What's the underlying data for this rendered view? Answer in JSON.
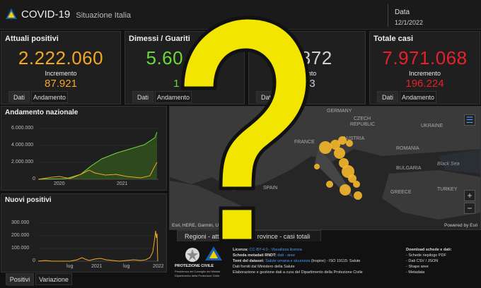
{
  "header": {
    "title": "COVID-19",
    "subtitle": "Situazione Italia",
    "date_label": "Data",
    "date_value": "12/1/2022"
  },
  "kpis": [
    {
      "title": "Attuali positivi",
      "value": "2.222.060",
      "inc_label": "Incremento",
      "inc_value": "87.921",
      "color": "#f5a623"
    },
    {
      "title": "Dimessi / Guariti",
      "value": "5.60…36",
      "inc_label": "",
      "inc_value": "1…8",
      "color": "#6dd83a"
    },
    {
      "title": "",
      "value": "…872",
      "inc_label": "…ento",
      "inc_value": "…3",
      "color": "#cfcfcf"
    },
    {
      "title": "Totale casi",
      "value": "7.971.068",
      "inc_label": "Incremento",
      "inc_value": "196.224",
      "color": "#e8202a"
    }
  ],
  "kpi_tabs": {
    "dati": "Dati",
    "andamento": "Andamento"
  },
  "andamento_nazionale": {
    "title": "Andamento nazionale",
    "yticks": [
      "6.000.000",
      "4.000.000",
      "2.000.000",
      "0"
    ],
    "xticks": [
      "2020",
      "2021"
    ]
  },
  "nuovi_positivi": {
    "title": "Nuovi positivi",
    "yticks": [
      "300.000",
      "200.000",
      "100.000",
      "0"
    ],
    "xticks": [
      "lug",
      "2021",
      "lug",
      "2022"
    ]
  },
  "bottom_tabs": {
    "positivi": "Positivi",
    "variazione": "Variazione"
  },
  "map": {
    "labels": {
      "germany": "GERMANY",
      "czech": "CZECH",
      "republic": "REPUBLIC",
      "ukraine": "UKRAINE",
      "austria": "AUSTRIA",
      "france": "FRANCE",
      "romania": "ROMANIA",
      "bulgaria": "BULGARIA",
      "black_sea": "Black Sea",
      "spain": "SPAIN",
      "greece": "GREECE",
      "turkey": "TURKEY"
    },
    "attribution": "Esri, HERE, Garmin, US",
    "powered": "Powered by Esri",
    "zoom_in": "+",
    "zoom_out": "−",
    "tab_regioni": "Regioni - attuali p",
    "tab_province": "rovince - casi totali"
  },
  "footer": {
    "logo_line1": "PROTEZIONE CIVILE",
    "logo_line2": "Presidenza del Consiglio dei Ministri",
    "logo_line3": "Dipartimento della Protezione Civile",
    "licenza_label": "Licenza:",
    "licenza_value": "CC-BY-4.0 - Visualizza licenza",
    "metadati_label": "Scheda metadati RNDT:",
    "metadati_value": "dati - aree",
    "temi_label": "Temi del dataset:",
    "temi_value": "Salute umana e sicurezza",
    "temi_rest": "(Inspire) - ISO 19115: Salute",
    "fonte": "Dati forniti dal Ministero della Salute",
    "elaborazione": "Elaborazione e gestione dati a cura del Dipartimento della Protezione Civile",
    "download_title": "Download schede e dati:",
    "downloads": [
      "- Schede riepilogo PDF",
      "- Dati CSV / JSON",
      "- Shape aree",
      "- Metadata"
    ]
  },
  "colors": {
    "attuali": "#f5a623",
    "guariti": "#6dd83a",
    "totale": "#e8202a",
    "question_mark": "#f2e600"
  }
}
